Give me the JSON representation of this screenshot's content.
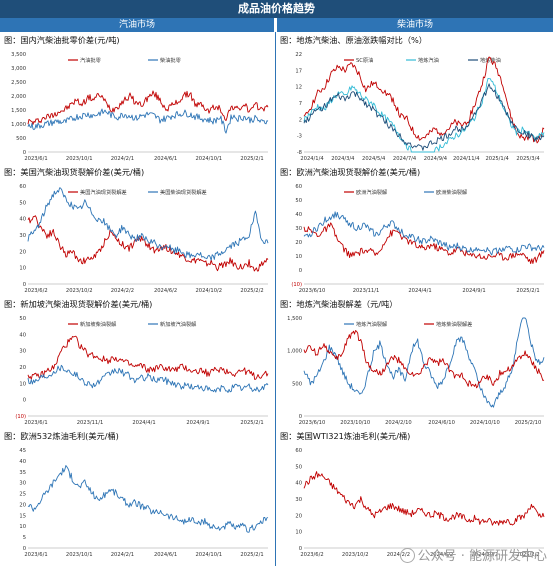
{
  "page_title": "成品油价格趋势",
  "sections": {
    "left": "汽油市场",
    "right": "柴油市场"
  },
  "watermark": "公众号 · 能源研发中心",
  "colors": {
    "red": "#c00000",
    "blue": "#2e75b6",
    "cyan": "#33bbd6",
    "navy": "#1f4e79",
    "header": "#1f4e79",
    "subheader": "#2e74b5"
  },
  "chart_data": [
    {
      "id": "cn-wholesale",
      "type": "line",
      "title": "图：国内汽柴油批零价差(元/吨)",
      "ylim": [
        0,
        3500
      ],
      "yticks": [
        "3,500",
        "3,000",
        "2,500",
        "2,000",
        "1,500",
        "1,000",
        "500",
        "0"
      ],
      "xticks": [
        "2023/6/1",
        "2023/10/1",
        "2024/2/1",
        "2024/6/1",
        "2024/10/1",
        "2025/2/1"
      ],
      "x_range": [
        "2023-05",
        "2025-05"
      ],
      "series": [
        {
          "name": "汽油批零",
          "color": "red",
          "values": [
            1100,
            1050,
            1150,
            1250,
            1300,
            1450,
            1500,
            1650,
            1850,
            1700,
            1950,
            1900,
            2050,
            1750,
            1500,
            1650,
            1850,
            2000,
            1750,
            1700,
            1950,
            2100,
            1850,
            1550,
            1650,
            1800,
            2000,
            2100,
            1650,
            1700,
            1450,
            1600,
            1550,
            1200,
            1650,
            1500,
            1700,
            1450,
            1650,
            1550,
            1600
          ]
        },
        {
          "name": "柴油批零",
          "color": "blue",
          "values": [
            950,
            900,
            950,
            1000,
            1050,
            1100,
            1050,
            1150,
            1250,
            1300,
            1350,
            1300,
            1400,
            1450,
            1300,
            1250,
            1350,
            1300,
            1200,
            1300,
            1350,
            1300,
            1150,
            1200,
            1300,
            1350,
            1400,
            1350,
            1250,
            1200,
            1150,
            1100,
            1250,
            750,
            1300,
            1200,
            1250,
            1150,
            1200,
            1050,
            1100
          ]
        }
      ]
    },
    {
      "id": "local-spread",
      "type": "line",
      "title": "图：地炼汽柴油、原油涨跌幅对比（%）",
      "ylim": [
        -8,
        22
      ],
      "yticks": [
        "22",
        "17",
        "12",
        "7",
        "2",
        "-3",
        "-8"
      ],
      "xticks": [
        "2024/1/4",
        "2024/3/4",
        "2024/5/4",
        "2024/7/4",
        "2024/9/4",
        "2024/11/4",
        "2025/1/4",
        "2025/3/4"
      ],
      "x_range": [
        "2024-01",
        "2025-04"
      ],
      "series": [
        {
          "name": "SC原油",
          "color": "red",
          "values": [
            2,
            6,
            10,
            12,
            16,
            18,
            17,
            19,
            16,
            11,
            13,
            12,
            10,
            8,
            3,
            2,
            -2,
            -4,
            -3,
            -1,
            -2,
            -1,
            1,
            0,
            2,
            7,
            13,
            21,
            18,
            13,
            4,
            -2,
            -4,
            -3,
            -5,
            -1
          ]
        },
        {
          "name": "地炼汽油",
          "color": "cyan",
          "values": [
            2,
            4,
            6,
            5,
            8,
            10,
            9,
            12,
            10,
            8,
            7,
            4,
            2,
            0,
            -3,
            -6,
            -9,
            -11,
            -10,
            -8,
            -6,
            -5,
            -3,
            -2,
            0,
            3,
            8,
            15,
            11,
            6,
            1,
            -2,
            -1,
            -3,
            -4,
            -2
          ]
        },
        {
          "name": "地炼柴油",
          "color": "navy",
          "values": [
            1,
            3,
            5,
            6,
            8,
            9,
            8,
            10,
            9,
            7,
            5,
            3,
            1,
            -1,
            -3,
            -5,
            -6,
            -7,
            -6,
            -5,
            -4,
            -3,
            -1,
            -1,
            1,
            4,
            8,
            12,
            10,
            6,
            2,
            -1,
            -2,
            -3,
            -4,
            -3
          ]
        }
      ]
    },
    {
      "id": "us-crack",
      "type": "line",
      "title": "图：美国汽柴油现货裂解价差(美元/桶)",
      "ylim": [
        0,
        60
      ],
      "yticks": [
        "60",
        "50",
        "40",
        "30",
        "20",
        "10",
        "0"
      ],
      "xticks": [
        "2023/6/2",
        "2023/10/2",
        "2024/2/2",
        "2024/6/2",
        "2024/10/2",
        "2025/2/2"
      ],
      "x_range": [
        "2023-05",
        "2025-04"
      ],
      "series": [
        {
          "name": "美国汽油现货裂解差",
          "color": "red",
          "values": [
            38,
            42,
            35,
            30,
            32,
            24,
            18,
            20,
            15,
            14,
            16,
            18,
            25,
            32,
            28,
            24,
            22,
            26,
            28,
            24,
            20,
            23,
            22,
            20,
            18,
            16,
            14,
            15,
            12,
            13,
            10,
            12,
            14,
            11,
            10,
            13,
            8,
            12,
            15
          ]
        },
        {
          "name": "美国柴油现货裂解差",
          "color": "blue",
          "values": [
            28,
            32,
            38,
            48,
            55,
            58,
            52,
            48,
            45,
            50,
            44,
            40,
            38,
            33,
            30,
            35,
            30,
            28,
            29,
            26,
            25,
            22,
            24,
            20,
            21,
            18,
            17,
            19,
            15,
            16,
            18,
            20,
            23,
            25,
            27,
            30,
            43,
            28,
            25
          ]
        }
      ]
    },
    {
      "id": "eu-crack",
      "type": "line",
      "title": "图：欧洲汽柴油现货裂解价差(美元/桶)",
      "ylim": [
        -10,
        60
      ],
      "yticks": [
        "60",
        "50",
        "40",
        "30",
        "20",
        "10",
        "0",
        "(10)"
      ],
      "xticks": [
        "2023/6/10",
        "2023/11/1",
        "2024/4/1",
        "2024/9/1",
        "2025/2/1"
      ],
      "x_range": [
        "2023-05",
        "2025-04"
      ],
      "series": [
        {
          "name": "欧洲汽油裂解",
          "color": "red",
          "values": [
            30,
            28,
            25,
            28,
            32,
            22,
            15,
            10,
            12,
            14,
            13,
            11,
            20,
            26,
            28,
            22,
            20,
            17,
            15,
            18,
            16,
            14,
            12,
            15,
            13,
            10,
            11,
            9,
            10,
            11,
            9,
            10,
            12,
            11,
            6,
            8,
            14
          ]
        },
        {
          "name": "欧洲柴油裂解",
          "color": "blue",
          "values": [
            22,
            26,
            30,
            35,
            38,
            40,
            36,
            33,
            30,
            32,
            28,
            25,
            30,
            34,
            30,
            26,
            24,
            22,
            20,
            22,
            20,
            18,
            16,
            17,
            15,
            14,
            16,
            15,
            13,
            14,
            16,
            15,
            14,
            17,
            16,
            15,
            16
          ]
        }
      ]
    },
    {
      "id": "sg-crack",
      "type": "line",
      "title": "图：新加坡汽柴油现货裂解价差(美元/桶)",
      "ylim": [
        -10,
        50
      ],
      "yticks": [
        "50",
        "40",
        "30",
        "20",
        "10",
        "0",
        "(10)"
      ],
      "xticks": [
        "2023/6/1",
        "2023/11/1",
        "2024/4/1",
        "2024/9/1",
        "2025/2/1"
      ],
      "x_range": [
        "2023-05",
        "2025-04"
      ],
      "series": [
        {
          "name": "新加坡柴油裂解",
          "color": "red",
          "values": [
            15,
            14,
            15,
            18,
            20,
            30,
            35,
            38,
            32,
            28,
            27,
            25,
            24,
            26,
            24,
            22,
            20,
            21,
            18,
            19,
            20,
            19,
            18,
            20,
            19,
            17,
            18,
            16,
            18,
            19,
            17,
            16,
            18,
            17,
            14,
            15,
            16
          ]
        },
        {
          "name": "新加坡汽油裂解",
          "color": "blue",
          "values": [
            12,
            11,
            14,
            15,
            18,
            20,
            18,
            16,
            12,
            10,
            9,
            12,
            15,
            18,
            17,
            15,
            12,
            13,
            14,
            12,
            13,
            11,
            10,
            8,
            9,
            7,
            8,
            6,
            5,
            7,
            6,
            8,
            7,
            8,
            6,
            7,
            9
          ]
        }
      ]
    },
    {
      "id": "local-crack",
      "type": "line",
      "title": "图：地炼汽柴油裂解差（元/吨）",
      "ylim": [
        0,
        1500
      ],
      "yticks": [
        "1,500",
        "1,000",
        "500",
        "0"
      ],
      "xticks": [
        "2023/6/10",
        "2023/10/10",
        "2024/2/10",
        "2024/6/10",
        "2024/10/10",
        "2025/2/10"
      ],
      "x_range": [
        "2023-05",
        "2025-04"
      ],
      "series": [
        {
          "name": "地炼汽油裂解",
          "color": "blue",
          "values": [
            700,
            500,
            600,
            800,
            1050,
            950,
            700,
            500,
            400,
            300,
            600,
            950,
            1100,
            850,
            600,
            700,
            550,
            1000,
            1150,
            800,
            650,
            450,
            550,
            800,
            1100,
            1200,
            950,
            700,
            400,
            200,
            150,
            350,
            500,
            700,
            1300,
            1600,
            1100,
            800,
            900
          ]
        },
        {
          "name": "地炼柴油裂解差",
          "color": "red",
          "values": [
            1000,
            1050,
            950,
            1100,
            1000,
            850,
            950,
            1200,
            1300,
            1150,
            800,
            700,
            650,
            750,
            900,
            850,
            700,
            650,
            600,
            750,
            900,
            800,
            850,
            700,
            600,
            650,
            500,
            450,
            550,
            600,
            500,
            650,
            700,
            750,
            900,
            950,
            850,
            700,
            550
          ]
        }
      ]
    },
    {
      "id": "eu-532",
      "type": "line",
      "title": "图：欧洲532炼油毛利(美元/桶)",
      "ylim": [
        0,
        45
      ],
      "yticks": [
        "45",
        "40",
        "35",
        "30",
        "25",
        "20",
        "15",
        "10",
        "5",
        "0"
      ],
      "xticks": [
        "2023/6/1",
        "2023/10/1",
        "2024/2/1",
        "2024/6/1",
        "2024/10/1",
        "2025/2/1"
      ],
      "x_range": [
        "2023-05",
        "2025-04"
      ],
      "series": [
        {
          "name": "欧洲532炼油毛利",
          "color": "blue",
          "values": [
            20,
            18,
            22,
            26,
            30,
            34,
            37,
            32,
            28,
            30,
            26,
            22,
            24,
            27,
            25,
            22,
            20,
            21,
            19,
            18,
            16,
            17,
            15,
            14,
            13,
            12,
            13,
            11,
            12,
            10,
            9,
            10,
            11,
            9,
            10,
            8,
            10,
            12,
            14
          ]
        }
      ]
    },
    {
      "id": "us-321",
      "type": "line",
      "title": "图：美国WTI321炼油毛利(美元/桶)",
      "ylim": [
        0,
        60
      ],
      "yticks": [
        "60",
        "50",
        "40",
        "30",
        "20",
        "10",
        "0"
      ],
      "xticks": [
        "2023/6/2",
        "2023/10/2",
        "2024/2/2",
        "2024/6/2",
        "2024/10/2",
        "2025/2/2"
      ],
      "x_range": [
        "2023-05",
        "2025-04"
      ],
      "series": [
        {
          "name": "美国WTI321炼油毛利",
          "color": "red",
          "values": [
            38,
            42,
            45,
            44,
            40,
            36,
            32,
            28,
            26,
            30,
            24,
            20,
            22,
            25,
            26,
            24,
            22,
            21,
            23,
            22,
            20,
            21,
            19,
            18,
            20,
            19,
            17,
            18,
            16,
            17,
            15,
            16,
            17,
            16,
            18,
            20,
            27,
            20,
            19
          ]
        }
      ]
    }
  ]
}
